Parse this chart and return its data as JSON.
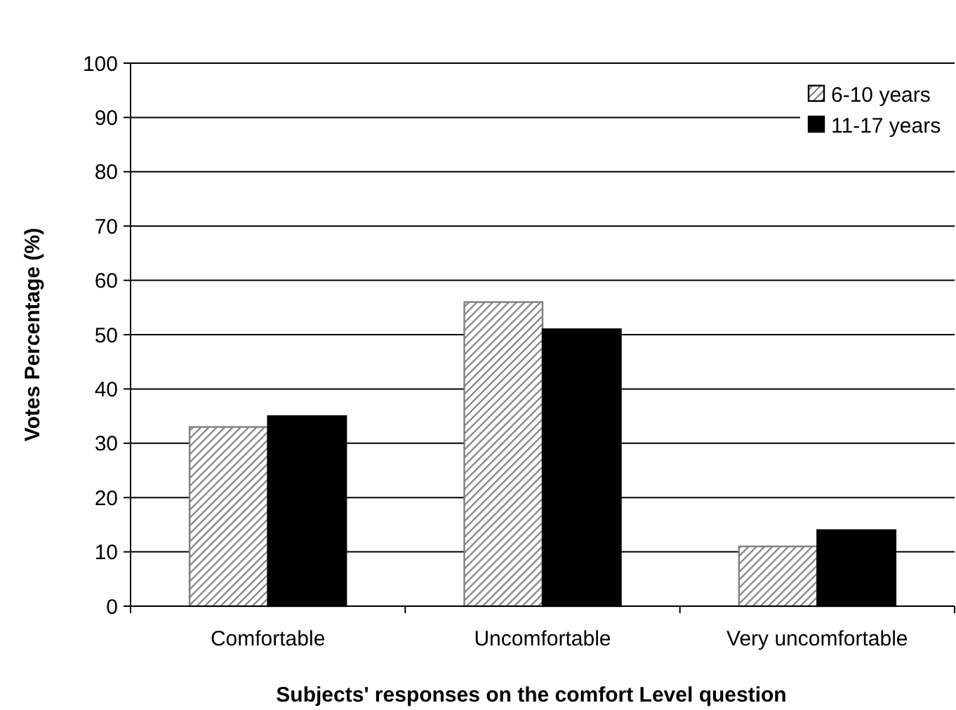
{
  "chart_data": {
    "type": "bar",
    "xlabel": "Subjects' responses on the comfort Level question",
    "ylabel": "Votes Percentage (%)",
    "categories": [
      "Comfortable",
      "Uncomfortable",
      "Very uncomfortable"
    ],
    "series": [
      {
        "name": "6-10 years",
        "color": "#808080",
        "values": [
          33,
          56,
          11
        ]
      },
      {
        "name": "11-17 years",
        "color": "#000000",
        "values": [
          35,
          51,
          14
        ]
      }
    ],
    "ylim": [
      0,
      100
    ],
    "yticks": [
      0,
      10,
      20,
      30,
      40,
      50,
      60,
      70,
      80,
      90,
      100
    ],
    "grid": "y",
    "legend": "top right"
  }
}
